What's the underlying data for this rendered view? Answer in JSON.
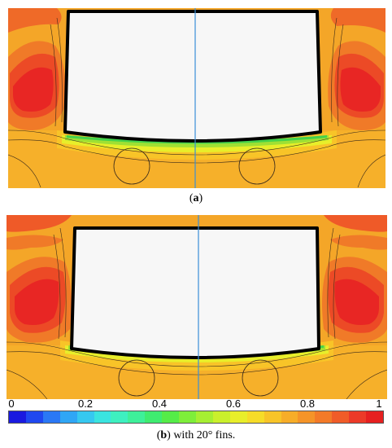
{
  "caption_a": {
    "prefix": "(",
    "letter": "a",
    "suffix": ")"
  },
  "caption_b": {
    "prefix": "(",
    "letter": "b",
    "suffix": ") with 20° fins."
  },
  "colorbar": {
    "tick_labels": [
      "0",
      "0.2",
      "0.4",
      "0.6",
      "0.8",
      "1"
    ],
    "ticks": [
      0,
      0.2,
      0.4,
      0.6,
      0.8,
      1
    ],
    "colors": [
      "#1a1ae0",
      "#1f48f0",
      "#2a78f5",
      "#2fa6f5",
      "#36c8f0",
      "#3ae4e0",
      "#3ef0c0",
      "#3ef09a",
      "#3fec70",
      "#55ec48",
      "#7eee3a",
      "#a6ef32",
      "#caf02c",
      "#e8ee2a",
      "#f6dc28",
      "#f8c428",
      "#f7ad28",
      "#f59428",
      "#f37a28",
      "#f05c28",
      "#ec3a28",
      "#e62020"
    ]
  }
}
